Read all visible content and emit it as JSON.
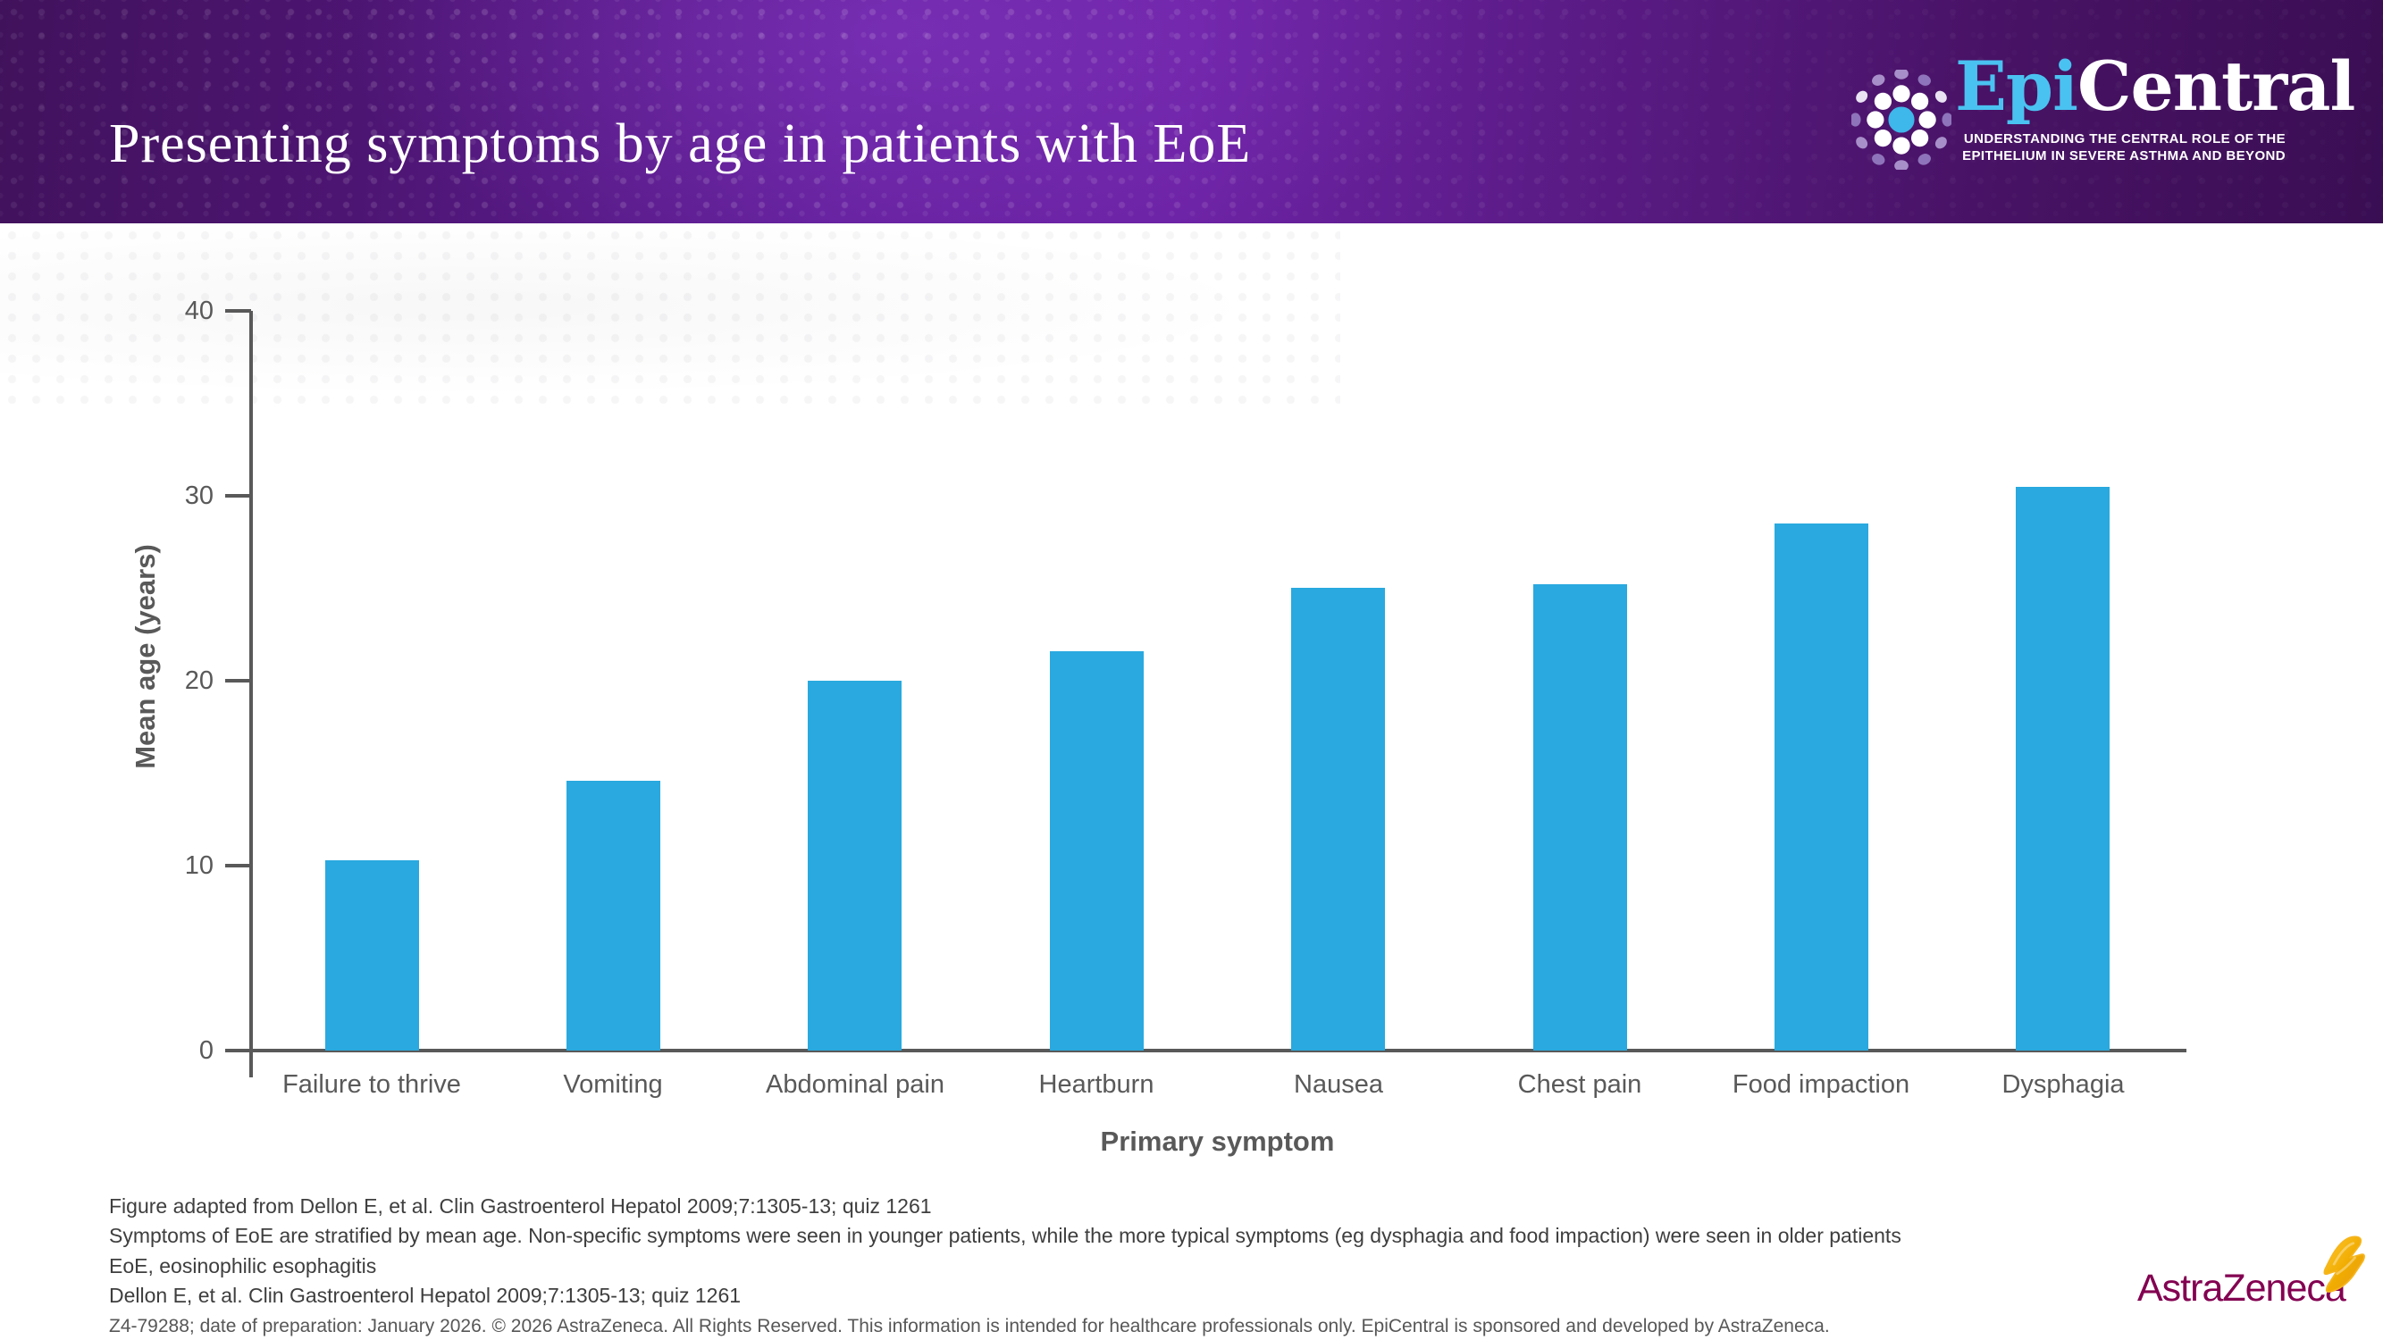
{
  "header": {
    "title": "Presenting symptoms by age in patients with EoE",
    "logo": {
      "brand_epi": "Epi",
      "brand_central": "Central",
      "tagline_line1": "UNDERSTANDING THE CENTRAL ROLE OF THE",
      "tagline_line2": "EPITHELIUM IN SEVERE ASTHMA AND BEYOND",
      "brand_blue": "#4AC2F1"
    },
    "background_purple": "#6C22A4"
  },
  "chart_data": {
    "type": "bar",
    "title": "",
    "categories": [
      "Failure to thrive",
      "Vomiting",
      "Abdominal pain",
      "Heartburn",
      "Nausea",
      "Chest pain",
      "Food impaction",
      "Dysphagia"
    ],
    "values": [
      10.3,
      14.6,
      20.0,
      21.6,
      25.0,
      25.2,
      28.5,
      30.5
    ],
    "xlabel": "Primary symptom",
    "ylabel": "Mean age (years)",
    "ylim": [
      0,
      40
    ],
    "yticks": [
      0,
      10,
      20,
      30,
      40
    ],
    "bar_color": "#29A9DF",
    "axis_color": "#595959",
    "grid": false,
    "legend": "none"
  },
  "footnotes": {
    "lines": [
      "Figure adapted from Dellon E, et al. Clin Gastroenterol Hepatol 2009;7:1305-13; quiz 1261",
      "Symptoms of EoE are stratified by mean age. Non-specific symptoms were seen in younger patients, while the more typical symptoms (eg dysphagia and food impaction) were seen in older patients",
      "EoE, eosinophilic esophagitis",
      "Dellon E, et al. Clin Gastroenterol Hepatol 2009;7:1305-13; quiz 1261"
    ],
    "disclaimer": "Z4-79288; date of preparation: January 2026. © 2026 AstraZeneca. All Rights Reserved. This information is intended for healthcare professionals only. EpiCentral is sponsored and developed by AstraZeneca."
  },
  "az_logo": {
    "text": "AstraZeneca",
    "brand_color": "#830051",
    "gold": "#F0AB00"
  }
}
